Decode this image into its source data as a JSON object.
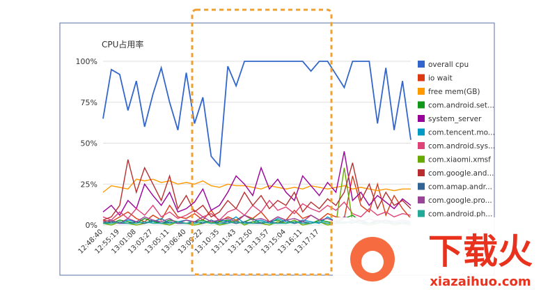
{
  "chart_data": {
    "type": "line",
    "title": "CPU占用率",
    "categories": [
      "12:48:40",
      null,
      "12:55:19",
      null,
      "13:01:08",
      null,
      "13:03:27",
      null,
      "13:05:11",
      null,
      "13:06:40",
      null,
      "13:09:22",
      null,
      "13:10:35",
      null,
      "13:11:43",
      null,
      "13:12:50",
      null,
      "13:13:57",
      null,
      "13:15:04",
      null,
      "13:16:11",
      null,
      "13:17:17",
      null,
      null,
      null,
      null,
      null,
      null,
      null,
      null,
      null,
      null,
      null
    ],
    "ylim": [
      0,
      100
    ],
    "yticks": [
      {
        "value": 0,
        "label": "0%"
      },
      {
        "value": 25,
        "label": "25%"
      },
      {
        "value": 50,
        "label": "50%"
      },
      {
        "value": 75,
        "label": "75%"
      },
      {
        "value": 100,
        "label": "100%"
      }
    ],
    "grid": true,
    "legend": "right",
    "series": [
      {
        "name": "overall cpu",
        "color": "#3366cc",
        "values": [
          65,
          95,
          92,
          70,
          88,
          60,
          80,
          96,
          75,
          58,
          93,
          62,
          78,
          42,
          36,
          97,
          85,
          100,
          100,
          100,
          100,
          100,
          100,
          100,
          100,
          94,
          100,
          100,
          92,
          84,
          100,
          100,
          100,
          62,
          96,
          58,
          88,
          52
        ]
      },
      {
        "name": "io wait",
        "color": "#dc3912",
        "values": [
          3,
          2,
          5,
          8,
          4,
          2,
          6,
          3,
          12,
          5,
          4,
          7,
          3,
          9,
          2,
          5,
          3,
          6,
          4,
          8,
          2,
          5,
          3,
          9,
          4,
          6,
          3,
          7,
          5,
          4,
          30,
          12,
          8,
          25,
          6,
          18,
          10,
          4
        ]
      },
      {
        "name": "free mem(GB)",
        "color": "#ff9900",
        "values": [
          20,
          24,
          23,
          22,
          28,
          27,
          28,
          26,
          27,
          25,
          26,
          25,
          27,
          24,
          23,
          25,
          24,
          24,
          23,
          22,
          24,
          23,
          22,
          23,
          22,
          24,
          23,
          22,
          23,
          24,
          22,
          23,
          22,
          21,
          22,
          21,
          22,
          22
        ]
      },
      {
        "name": "com.android.set...",
        "color": "#109618",
        "values": [
          2,
          1,
          3,
          2,
          1,
          4,
          2,
          1,
          3,
          2,
          1,
          2,
          3,
          1,
          2,
          3,
          1,
          2,
          4,
          1,
          2,
          3,
          1,
          2,
          2,
          1,
          3,
          2,
          1,
          4,
          6,
          2,
          1,
          3,
          2,
          1,
          2,
          1
        ]
      },
      {
        "name": "system_server",
        "color": "#990099",
        "values": [
          8,
          12,
          6,
          15,
          10,
          25,
          18,
          12,
          20,
          8,
          10,
          14,
          22,
          9,
          12,
          20,
          30,
          25,
          18,
          35,
          22,
          28,
          20,
          15,
          30,
          24,
          18,
          26,
          20,
          45,
          15,
          20,
          12,
          18,
          14,
          10,
          16,
          12
        ]
      },
      {
        "name": "com.tencent.mo...",
        "color": "#0099c6",
        "values": [
          1,
          2,
          1,
          3,
          2,
          1,
          2,
          4,
          1,
          2,
          3,
          1,
          2,
          1,
          3,
          2,
          5,
          1,
          2,
          3,
          1,
          4,
          2,
          1,
          3,
          2,
          1,
          5,
          2,
          1,
          3,
          2,
          1,
          2,
          3,
          1,
          2,
          1
        ]
      },
      {
        "name": "com.android.sys...",
        "color": "#dd4477",
        "values": [
          5,
          3,
          8,
          4,
          10,
          6,
          12,
          5,
          8,
          4,
          6,
          9,
          5,
          7,
          3,
          8,
          10,
          6,
          12,
          8,
          15,
          9,
          11,
          7,
          13,
          10,
          8,
          12,
          9,
          14,
          7,
          5,
          10,
          6,
          8,
          5,
          7,
          6
        ]
      },
      {
        "name": "com.xiaomi.xmsf",
        "color": "#66aa00",
        "values": [
          1,
          0,
          2,
          1,
          0,
          1,
          3,
          1,
          0,
          2,
          1,
          0,
          1,
          2,
          0,
          1,
          3,
          0,
          2,
          1,
          0,
          2,
          1,
          3,
          0,
          1,
          2,
          0,
          1,
          35,
          2,
          1,
          0,
          1,
          2,
          0,
          1,
          0
        ]
      },
      {
        "name": "com.google.and...",
        "color": "#b82e2e",
        "values": [
          3,
          5,
          12,
          40,
          20,
          35,
          25,
          15,
          30,
          10,
          18,
          8,
          12,
          5,
          8,
          15,
          10,
          20,
          12,
          18,
          10,
          15,
          12,
          20,
          8,
          14,
          10,
          16,
          12,
          20,
          38,
          15,
          25,
          10,
          20,
          12,
          15,
          10
        ]
      },
      {
        "name": "com.amap.andr...",
        "color": "#316395",
        "values": [
          1,
          2,
          1,
          1,
          2,
          1,
          3,
          1,
          2,
          1,
          1,
          2,
          1,
          3,
          1,
          2,
          1,
          2,
          1,
          1,
          2,
          1,
          3,
          1,
          2,
          1,
          2,
          1,
          1,
          2,
          1,
          3,
          1,
          2,
          1,
          1,
          2,
          1
        ]
      },
      {
        "name": "com.google.pro...",
        "color": "#994499",
        "values": [
          2,
          3,
          1,
          4,
          2,
          5,
          3,
          2,
          4,
          1,
          3,
          2,
          5,
          2,
          3,
          4,
          2,
          6,
          3,
          4,
          2,
          5,
          3,
          4,
          2,
          6,
          3,
          4,
          2,
          5,
          3,
          2,
          4,
          2,
          3,
          2,
          3,
          2
        ]
      },
      {
        "name": "com.android.ph...",
        "color": "#22aa99",
        "values": [
          1,
          1,
          2,
          1,
          1,
          2,
          1,
          1,
          1,
          2,
          1,
          1,
          2,
          1,
          1,
          1,
          2,
          1,
          1,
          2,
          1,
          1,
          1,
          2,
          1,
          1,
          2,
          1,
          1,
          1,
          2,
          1,
          1,
          1,
          2,
          1,
          1,
          1
        ]
      }
    ]
  },
  "watermark": {
    "text": "下载火",
    "url": "xiazaihuo.com"
  }
}
